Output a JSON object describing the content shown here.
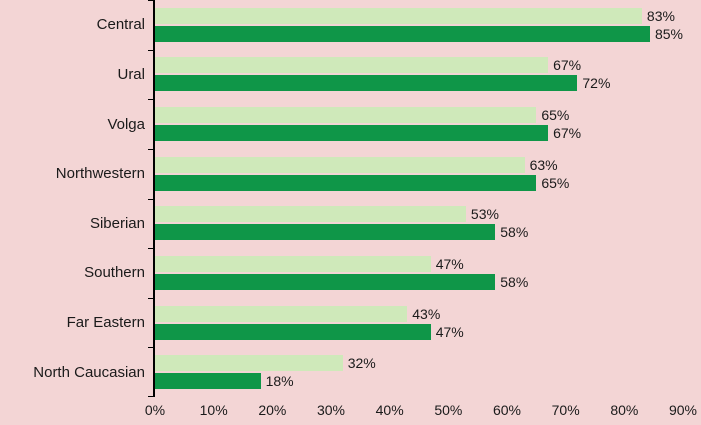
{
  "chart_data": {
    "type": "bar",
    "orientation": "horizontal",
    "title": "",
    "categories": [
      "Central",
      "Ural",
      "Volga",
      "Northwestern",
      "Siberian",
      "Southern",
      "Far Eastern",
      "North Caucasian"
    ],
    "series": [
      {
        "name": "light-green",
        "color": "#cfe9ba",
        "values": [
          83,
          67,
          65,
          63,
          53,
          47,
          43,
          32
        ]
      },
      {
        "name": "dark-green",
        "color": "#0f9648",
        "values": [
          85,
          72,
          67,
          65,
          58,
          58,
          47,
          18
        ]
      }
    ],
    "value_suffix": "%",
    "xlim": [
      0,
      90
    ],
    "x_ticks": [
      "0%",
      "10%",
      "20%",
      "30%",
      "40%",
      "50%",
      "60%",
      "70%",
      "80%",
      "90%"
    ],
    "grid": false,
    "legend": "none",
    "background_color": "#f3d5d5",
    "axis_color": "#000000",
    "text_color": "#1a1a1a"
  }
}
